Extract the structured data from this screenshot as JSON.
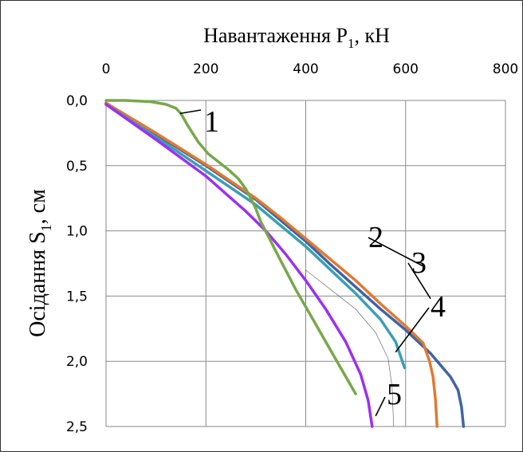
{
  "chart_data": {
    "type": "line",
    "xlabel": "Навантаження P1, кН",
    "xlabel_main": "Навантаження P",
    "xlabel_sub": "1",
    "xlabel_unit": ", кН",
    "ylabel": "Осідання S1, см",
    "ylabel_main": "Осідання S",
    "ylabel_sub": "1",
    "ylabel_unit": ", см",
    "xlim": [
      0,
      800
    ],
    "ylim": [
      0,
      2.5
    ],
    "y_inverted": true,
    "x_axis_position": "top",
    "grid": true,
    "x_ticks": [
      "0",
      "200",
      "400",
      "600",
      "800"
    ],
    "y_ticks": [
      "0,0",
      "0,5",
      "1,0",
      "1,5",
      "2,0",
      "2,5"
    ],
    "series": [
      {
        "name": "1",
        "color": "#77a84a",
        "points": [
          [
            0,
            0.0
          ],
          [
            40,
            0.0
          ],
          [
            90,
            0.01
          ],
          [
            120,
            0.03
          ],
          [
            140,
            0.06
          ],
          [
            150,
            0.1
          ],
          [
            165,
            0.2
          ],
          [
            185,
            0.32
          ],
          [
            205,
            0.41
          ],
          [
            225,
            0.47
          ],
          [
            245,
            0.53
          ],
          [
            265,
            0.6
          ],
          [
            280,
            0.68
          ],
          [
            290,
            0.75
          ],
          [
            300,
            0.83
          ],
          [
            310,
            0.93
          ],
          [
            330,
            1.08
          ],
          [
            350,
            1.23
          ],
          [
            380,
            1.45
          ],
          [
            410,
            1.65
          ],
          [
            440,
            1.85
          ],
          [
            470,
            2.05
          ],
          [
            500,
            2.25
          ]
        ]
      },
      {
        "name": "2",
        "color": "#3f64a6",
        "points": [
          [
            0,
            0.02
          ],
          [
            100,
            0.26
          ],
          [
            200,
            0.5
          ],
          [
            300,
            0.76
          ],
          [
            350,
            0.92
          ],
          [
            400,
            1.08
          ],
          [
            450,
            1.26
          ],
          [
            500,
            1.43
          ],
          [
            550,
            1.6
          ],
          [
            600,
            1.76
          ],
          [
            650,
            1.94
          ],
          [
            690,
            2.12
          ],
          [
            705,
            2.22
          ],
          [
            712,
            2.35
          ],
          [
            716,
            2.5
          ]
        ]
      },
      {
        "name": "3",
        "color": "#e07a32",
        "points": [
          [
            0,
            0.02
          ],
          [
            100,
            0.25
          ],
          [
            200,
            0.49
          ],
          [
            300,
            0.75
          ],
          [
            350,
            0.9
          ],
          [
            400,
            1.06
          ],
          [
            450,
            1.22
          ],
          [
            500,
            1.38
          ],
          [
            550,
            1.56
          ],
          [
            600,
            1.73
          ],
          [
            635,
            1.86
          ],
          [
            648,
            2.0
          ],
          [
            655,
            2.12
          ],
          [
            660,
            2.3
          ],
          [
            663,
            2.5
          ]
        ]
      },
      {
        "name": "4",
        "color": "#3a9fb4",
        "points": [
          [
            0,
            0.03
          ],
          [
            100,
            0.28
          ],
          [
            200,
            0.54
          ],
          [
            300,
            0.8
          ],
          [
            350,
            0.96
          ],
          [
            400,
            1.12
          ],
          [
            450,
            1.3
          ],
          [
            500,
            1.48
          ],
          [
            550,
            1.68
          ],
          [
            580,
            1.85
          ],
          [
            598,
            2.05
          ]
        ]
      },
      {
        "name": "5",
        "color": "#9b30f2",
        "points": [
          [
            0,
            0.03
          ],
          [
            100,
            0.3
          ],
          [
            200,
            0.58
          ],
          [
            280,
            0.85
          ],
          [
            320,
            1.0
          ],
          [
            360,
            1.18
          ],
          [
            400,
            1.38
          ],
          [
            440,
            1.6
          ],
          [
            480,
            1.85
          ],
          [
            510,
            2.1
          ],
          [
            525,
            2.3
          ],
          [
            533,
            2.5
          ]
        ]
      }
    ],
    "annotations": [
      "1",
      "2",
      "3",
      "4",
      "5"
    ]
  }
}
